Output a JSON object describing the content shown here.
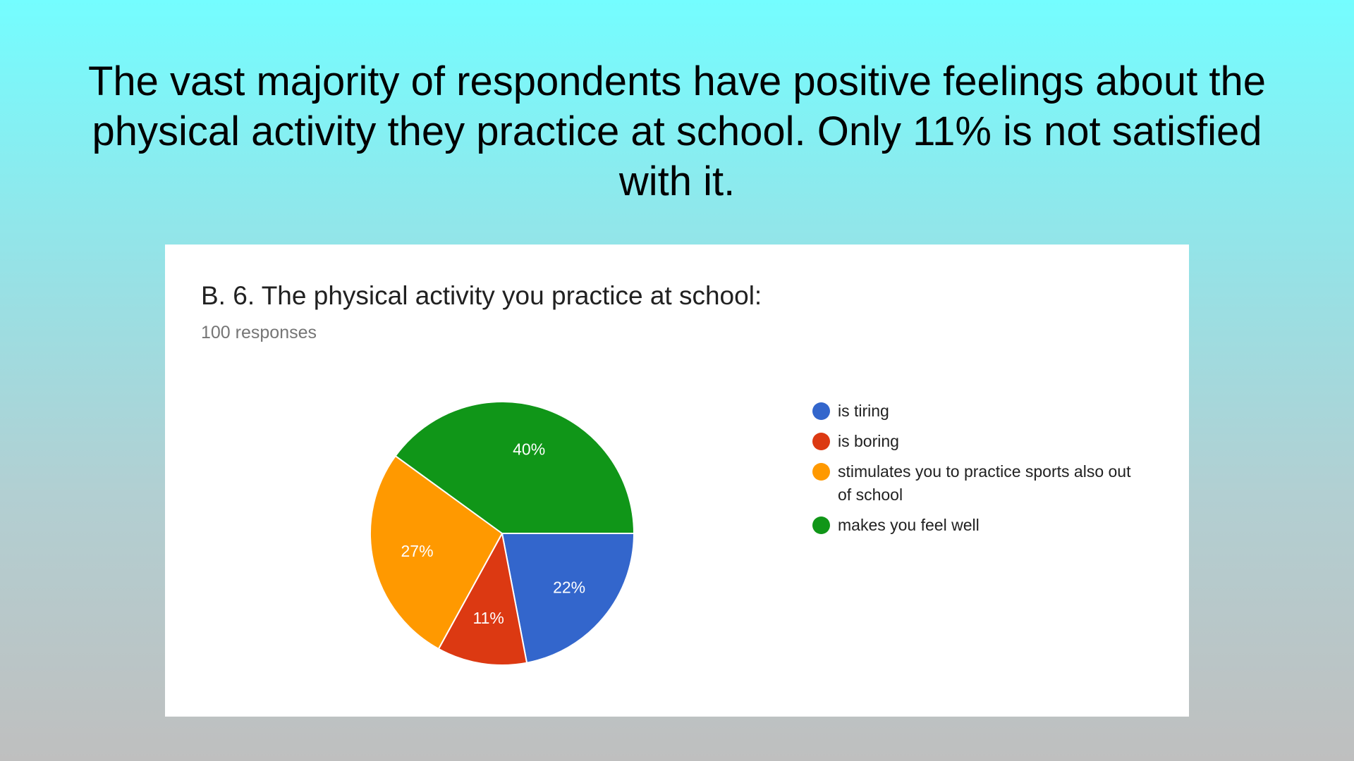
{
  "heading": "The vast majority of respondents have positive feelings about the physical activity they practice at school. Only 11% is not satisfied with it.",
  "chart_data": {
    "type": "pie",
    "title": "B. 6. The physical activity you practice at school:",
    "subtitle": "100 responses",
    "slices": [
      {
        "label": "is tiring",
        "value": 22,
        "display": "22%",
        "color": "#3366cc"
      },
      {
        "label": "is boring",
        "value": 11,
        "display": "11%",
        "color": "#dc3912"
      },
      {
        "label": "stimulates you to practice sports also out of school",
        "value": 27,
        "display": "27%",
        "color": "#ff9900"
      },
      {
        "label": "makes you feel well",
        "value": 40,
        "display": "40%",
        "color": "#109618"
      }
    ],
    "start_angle_deg": 90,
    "direction": "clockwise",
    "legend_position": "right"
  }
}
